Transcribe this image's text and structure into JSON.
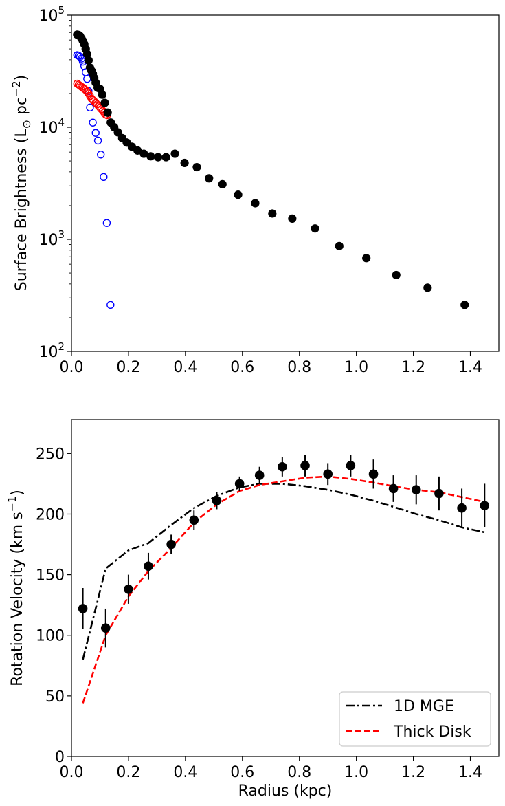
{
  "chart_data": [
    {
      "type": "scatter",
      "panel": "top",
      "xlabel": "",
      "ylabel": "Surface Brightness (L⊙ pc⁻²)",
      "ylabel_parts": {
        "main": "Surface Brightness (L",
        "sun": "⊙",
        "unit": " pc",
        "exp": "−2",
        "close": ")"
      },
      "xlim": [
        0,
        1.5
      ],
      "ylim": [
        100,
        100000
      ],
      "yscale": "log",
      "grid": false,
      "x_ticks": [
        "0.0",
        "0.2",
        "0.4",
        "0.6",
        "0.8",
        "1.0",
        "1.2",
        "1.4"
      ],
      "y_ticks": [
        {
          "base": "10",
          "exp": "2",
          "value": 100
        },
        {
          "base": "10",
          "exp": "3",
          "value": 1000
        },
        {
          "base": "10",
          "exp": "4",
          "value": 10000
        },
        {
          "base": "10",
          "exp": "5",
          "value": 100000
        }
      ],
      "series": [
        {
          "marker": "open-circle",
          "color": "#0000ff",
          "x": [
            0.02,
            0.025,
            0.03,
            0.035,
            0.04,
            0.045,
            0.05,
            0.055,
            0.06,
            0.065,
            0.075,
            0.085,
            0.093,
            0.103,
            0.113,
            0.124,
            0.137
          ],
          "y": [
            44000,
            43500,
            42500,
            41000,
            38500,
            35000,
            31000,
            27000,
            21000,
            15000,
            11000,
            8900,
            7600,
            5700,
            3600,
            1400,
            260
          ]
        },
        {
          "marker": "open-circle",
          "color": "#ff0000",
          "x": [
            0.02,
            0.025,
            0.03,
            0.035,
            0.04,
            0.045,
            0.05,
            0.055,
            0.06,
            0.065,
            0.07,
            0.075,
            0.08,
            0.085,
            0.09,
            0.095,
            0.1,
            0.105,
            0.11,
            0.115,
            0.12,
            0.125
          ],
          "y": [
            24500,
            24000,
            23500,
            23000,
            22500,
            22000,
            21500,
            20800,
            20000,
            19000,
            18000,
            17500,
            17000,
            16500,
            16000,
            15500,
            15000,
            14500,
            14000,
            13500,
            13000,
            12800
          ]
        },
        {
          "marker": "filled-circle",
          "color": "#000000",
          "x": [
            0.02,
            0.025,
            0.03,
            0.035,
            0.04,
            0.045,
            0.05,
            0.055,
            0.06,
            0.065,
            0.07,
            0.075,
            0.08,
            0.085,
            0.092,
            0.1,
            0.108,
            0.117,
            0.127,
            0.138,
            0.15,
            0.163,
            0.178,
            0.194,
            0.212,
            0.232,
            0.254,
            0.278,
            0.304,
            0.332,
            0.363,
            0.397,
            0.44,
            0.483,
            0.53,
            0.585,
            0.645,
            0.705,
            0.775,
            0.855,
            0.94,
            1.035,
            1.14,
            1.25,
            1.38
          ],
          "y": [
            67000,
            66500,
            65000,
            62000,
            59000,
            55000,
            50000,
            45000,
            39500,
            34000,
            32000,
            30000,
            27500,
            25000,
            22500,
            22000,
            19500,
            16500,
            13500,
            11000,
            10000,
            9000,
            8000,
            7300,
            6700,
            6200,
            5800,
            5500,
            5400,
            5400,
            5800,
            4800,
            4400,
            3500,
            3100,
            2500,
            2100,
            1700,
            1530,
            1250,
            870,
            680,
            480,
            370,
            260
          ]
        }
      ]
    },
    {
      "type": "line",
      "panel": "bottom",
      "xlabel": "Radius (kpc)",
      "ylabel": "Rotation Velocity (km s⁻¹)",
      "ylabel_parts": {
        "main": "Rotation Velocity (km s",
        "exp": "−1",
        "close": ")"
      },
      "xlim": [
        0,
        1.5
      ],
      "ylim": [
        0,
        278
      ],
      "grid": false,
      "legend_position": "lower-right",
      "x_ticks": [
        "0.0",
        "0.2",
        "0.4",
        "0.6",
        "0.8",
        "1.0",
        "1.2",
        "1.4"
      ],
      "y_ticks": [
        "0",
        "50",
        "100",
        "150",
        "200",
        "250"
      ],
      "series": [
        {
          "name": "1D MGE",
          "style": "dash-dot",
          "color": "#000000",
          "x": [
            0.04,
            0.12,
            0.2,
            0.27,
            0.35,
            0.43,
            0.51,
            0.59,
            0.66,
            0.74,
            0.82,
            0.9,
            0.98,
            1.06,
            1.13,
            1.21,
            1.29,
            1.37,
            1.45
          ],
          "y": [
            80,
            155,
            170,
            176,
            191,
            205,
            215,
            222,
            225,
            225,
            223,
            220,
            216,
            211,
            206,
            200,
            195,
            189,
            185
          ]
        },
        {
          "name": "Thick Disk",
          "style": "dashed",
          "color": "#ff0000",
          "x": [
            0.04,
            0.12,
            0.2,
            0.27,
            0.35,
            0.43,
            0.51,
            0.59,
            0.66,
            0.74,
            0.82,
            0.9,
            0.98,
            1.06,
            1.13,
            1.21,
            1.29,
            1.37,
            1.45
          ],
          "y": [
            44,
            100,
            132,
            153,
            172,
            193,
            208,
            219,
            224,
            227,
            230,
            231,
            229,
            226,
            223,
            220,
            218,
            214,
            210
          ]
        },
        {
          "style": "points-with-errorbars",
          "color": "#000000",
          "x": [
            0.04,
            0.12,
            0.2,
            0.27,
            0.35,
            0.43,
            0.51,
            0.59,
            0.66,
            0.74,
            0.82,
            0.9,
            0.98,
            1.06,
            1.13,
            1.21,
            1.29,
            1.37,
            1.45
          ],
          "y": [
            122,
            106,
            138,
            157,
            175,
            195,
            211,
            225,
            232,
            239,
            240,
            233,
            240,
            233,
            221,
            220,
            217,
            205,
            207
          ],
          "yerr": [
            17,
            16,
            12,
            11,
            8,
            8,
            7,
            6,
            7,
            8,
            9,
            9,
            9,
            12,
            11,
            12,
            14,
            16,
            18
          ]
        }
      ]
    }
  ]
}
